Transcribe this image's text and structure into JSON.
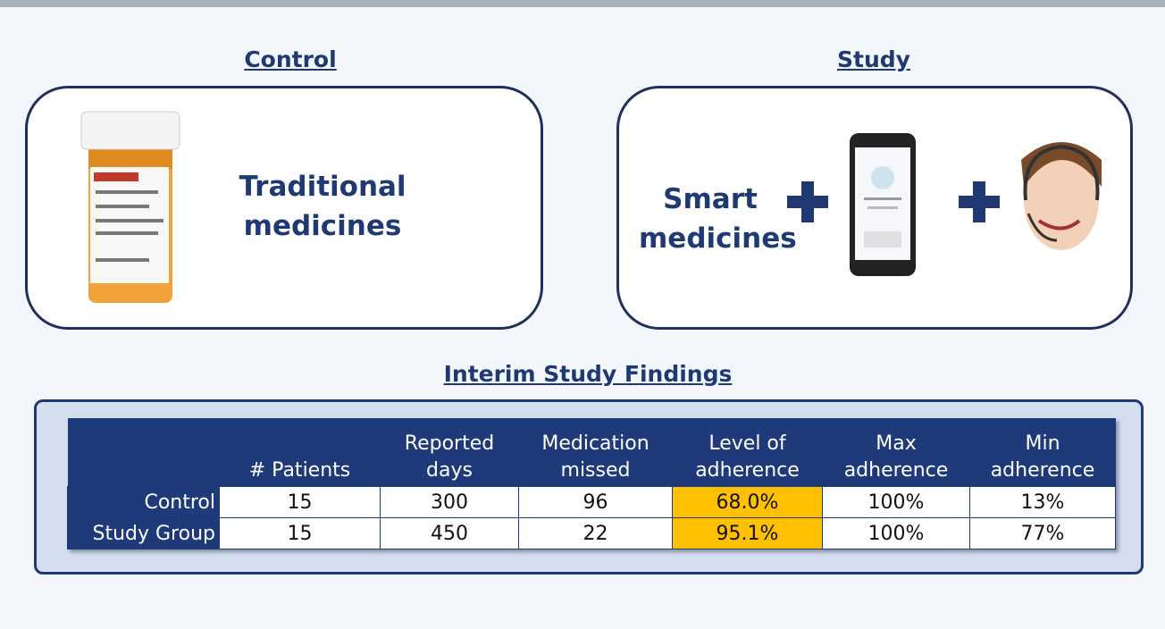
{
  "control": {
    "heading": "Control",
    "text": "Traditional medicines"
  },
  "study": {
    "heading": "Study",
    "text": "Smart medicines"
  },
  "findings": {
    "title": "Interim Study Findings",
    "table": {
      "header": [
        "# Patients",
        "Reported days",
        "Medication missed",
        "Level of adherence",
        "Max adherence",
        "Min adherence"
      ],
      "rows": [
        {
          "label": "Control",
          "cells": [
            "15",
            "300",
            "96",
            "68.0%",
            "100%",
            "13%"
          ]
        },
        {
          "label": "Study Group",
          "cells": [
            "15",
            "450",
            "22",
            "95.1%",
            "100%",
            "77%"
          ]
        }
      ]
    }
  }
}
